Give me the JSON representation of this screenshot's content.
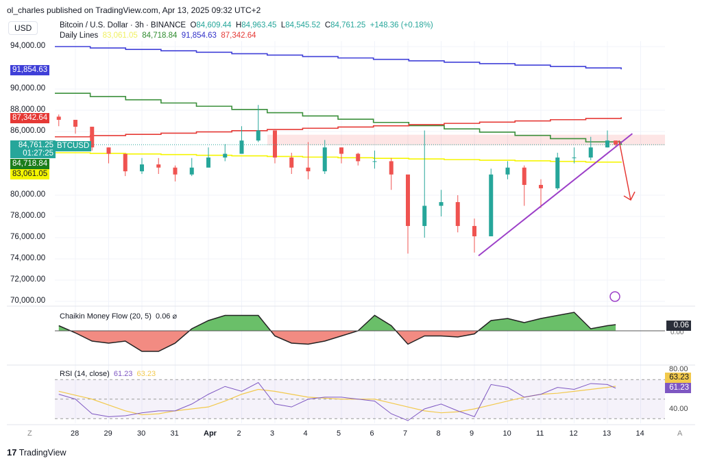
{
  "header": {
    "published": "ol_charles published on TradingView.com, Apr 13, 2025 09:32 UTC+2",
    "currency": "USD",
    "symbol": "Bitcoin / U.S. Dollar · 3h · BINANCE",
    "o_label": "O",
    "o": "84,609.44",
    "h_label": "H",
    "h": "84,963.45",
    "l_label": "L",
    "l": "84,545.52",
    "c_label": "C",
    "c": "84,761.25",
    "change": "+148.36 (+0.18%)",
    "lines_label": "Daily Lines",
    "lines": [
      "83,061.05",
      "84,718.84",
      "91,854.63",
      "87,342.64"
    ]
  },
  "price_axis": {
    "ticks": [
      "94,000.00",
      "90,000.00",
      "88,000.00",
      "86,000.00",
      "80,000.00",
      "78,000.00",
      "76,000.00",
      "74,000.00",
      "72,000.00",
      "70,000.00"
    ],
    "tick_values": [
      94000,
      90000,
      88000,
      86000,
      80000,
      78000,
      76000,
      74000,
      72000,
      70000
    ],
    "badges": {
      "blue": "91,854.63",
      "red": "87,342.64",
      "last": "84,761.25",
      "countdown": "01:27:25",
      "green": "84,718.84",
      "yellow": "83,061.05",
      "symbol_tag": "BTCUSD"
    }
  },
  "time_axis": {
    "labels": [
      "28",
      "29",
      "30",
      "31",
      "Apr",
      "2",
      "3",
      "4",
      "5",
      "6",
      "7",
      "8",
      "9",
      "10",
      "11",
      "12",
      "13",
      "14"
    ],
    "left_btn": "Z",
    "right_btn": "A"
  },
  "cmf": {
    "label": "Chaikin Money Flow (20, 5)",
    "value": "0.06",
    "axis_zero": "0.00"
  },
  "rsi": {
    "label": "RSI (14, close)",
    "value": "61.23",
    "ma_value": "63.23",
    "ticks": [
      "80.00",
      "40.00"
    ]
  },
  "footer": {
    "brand": "TradingView"
  },
  "colors": {
    "up": "#26a69a",
    "down": "#ef5350",
    "blue": "#3f3fd8",
    "green": "#3a8f3a",
    "red": "#e53935",
    "yellow": "#f5f500",
    "trend": "#9c3fc8",
    "rsi": "#7e57c2",
    "rsi_ma": "#f2c94c"
  },
  "chart_data": {
    "type": "candlestick",
    "ylim": [
      70000,
      94000
    ],
    "x": [
      "2025-03-27T12",
      "2025-03-28T00",
      "2025-03-28T12",
      "2025-03-29T00",
      "2025-03-29T12",
      "2025-03-30T00",
      "2025-03-30T12",
      "2025-03-31T00",
      "2025-03-31T12",
      "2025-04-01T00",
      "2025-04-01T12",
      "2025-04-02T00",
      "2025-04-02T12",
      "2025-04-03T00",
      "2025-04-03T12",
      "2025-04-04T00",
      "2025-04-04T12",
      "2025-04-05T00",
      "2025-04-05T12",
      "2025-04-06T00",
      "2025-04-06T12",
      "2025-04-07T00",
      "2025-04-07T12",
      "2025-04-08T00",
      "2025-04-08T12",
      "2025-04-09T00",
      "2025-04-09T12",
      "2025-04-10T00",
      "2025-04-10T12",
      "2025-04-11T00",
      "2025-04-11T12",
      "2025-04-12T00",
      "2025-04-12T12",
      "2025-04-13T00",
      "2025-04-13T06"
    ],
    "close": [
      87100,
      86450,
      84500,
      83900,
      82250,
      82900,
      82600,
      81950,
      82600,
      83550,
      83900,
      85150,
      86100,
      83550,
      82600,
      82250,
      84500,
      83900,
      83200,
      83200,
      81950,
      77100,
      79000,
      79350,
      77100,
      76130,
      81950,
      82600,
      80970,
      80650,
      83550,
      83550,
      84500,
      85150,
      84761
    ],
    "high": [
      87600,
      87000,
      86000,
      84500,
      83500,
      83500,
      83500,
      82800,
      83500,
      84500,
      84800,
      86500,
      88500,
      86000,
      84000,
      85000,
      85200,
      84500,
      84000,
      84200,
      83500,
      81000,
      86100,
      80500,
      80000,
      77800,
      82500,
      83200,
      82800,
      81500,
      84000,
      84500,
      85500,
      86100,
      84963
    ],
    "low": [
      86500,
      85800,
      84200,
      83000,
      81800,
      82000,
      82000,
      81300,
      81800,
      82800,
      83200,
      84000,
      85000,
      83000,
      82000,
      81500,
      82000,
      83000,
      82800,
      82500,
      80500,
      74500,
      76000,
      78000,
      76500,
      74600,
      77500,
      81500,
      79000,
      78800,
      80500,
      83000,
      83300,
      84500,
      84545
    ],
    "lines": [
      {
        "name": "91,854.63",
        "from": 94000,
        "to": 91854.63,
        "color": "#3f3fd8"
      },
      {
        "name": "84,718.84",
        "from": 89600,
        "to": 84718.84,
        "color": "#3a8f3a"
      },
      {
        "name": "87,342.64",
        "from": 85500,
        "to": 87342.64,
        "color": "#e53935"
      },
      {
        "name": "83,061.05",
        "from": 84000,
        "to": 83061.05,
        "color": "#f5f500"
      }
    ],
    "trendline": {
      "from": [
        "2025-04-09T03",
        74300
      ],
      "to": [
        "2025-04-13T18",
        85800
      ]
    },
    "resistance_zone": [
      84700,
      85700
    ],
    "cmf_values": [
      0.05,
      -0.02,
      -0.1,
      -0.12,
      -0.1,
      -0.2,
      -0.2,
      -0.12,
      0.02,
      0.1,
      0.15,
      0.15,
      0.15,
      -0.05,
      -0.12,
      -0.13,
      -0.1,
      -0.05,
      0.0,
      0.15,
      0.05,
      -0.13,
      -0.05,
      -0.05,
      -0.06,
      -0.03,
      0.1,
      0.12,
      0.08,
      0.12,
      0.15,
      0.18,
      0.02,
      0.05,
      0.06
    ],
    "rsi_values": [
      55,
      50,
      35,
      32,
      33,
      36,
      38,
      38,
      45,
      55,
      63,
      58,
      67,
      45,
      42,
      50,
      52,
      52,
      50,
      48,
      35,
      28,
      40,
      45,
      38,
      32,
      65,
      62,
      52,
      55,
      62,
      60,
      66,
      65,
      61.23
    ],
    "rsi_ma_values": [
      58,
      54,
      50,
      44,
      38,
      34,
      35,
      38,
      40,
      42,
      48,
      55,
      60,
      58,
      55,
      52,
      51,
      50,
      50,
      50,
      46,
      42,
      38,
      36,
      37,
      40,
      44,
      48,
      52,
      55,
      56,
      58,
      60,
      62,
      63.23
    ],
    "rsi_levels": [
      70,
      50,
      30
    ]
  }
}
